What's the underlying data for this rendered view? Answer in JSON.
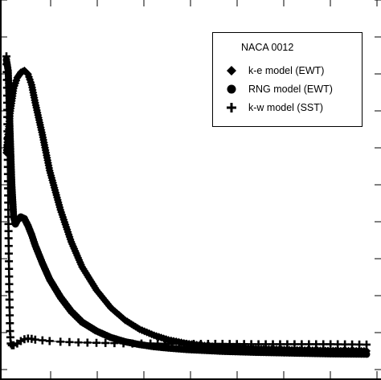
{
  "chart_data": {
    "type": "scatter",
    "legend": {
      "title": "NACA 0012",
      "placement": "top-right",
      "entries": [
        {
          "label": "k-e model (EWT)",
          "marker": "diamond"
        },
        {
          "label": "RNG model (EWT)",
          "marker": "circle"
        },
        {
          "label": "k-w model (SST)",
          "marker": "plus"
        }
      ]
    },
    "xlim": [
      0,
      1
    ],
    "ylim": [
      0,
      1
    ],
    "grid": false,
    "series": [
      {
        "name": "k-e model (EWT)",
        "marker": "diamond",
        "x": [
          0.0,
          0.01,
          0.02,
          0.03,
          0.04,
          0.05,
          0.06,
          0.07,
          0.08,
          0.1,
          0.12,
          0.15,
          0.18,
          0.21,
          0.25,
          0.29,
          0.33,
          0.37,
          0.41,
          0.45,
          0.5,
          0.55,
          0.6,
          0.7,
          0.8,
          0.9,
          1.0
        ],
        "y": [
          0.59,
          0.7,
          0.77,
          0.8,
          0.815,
          0.82,
          0.81,
          0.78,
          0.73,
          0.64,
          0.54,
          0.43,
          0.34,
          0.27,
          0.205,
          0.155,
          0.12,
          0.095,
          0.078,
          0.065,
          0.055,
          0.049,
          0.045,
          0.04,
          0.037,
          0.035,
          0.034
        ]
      },
      {
        "name": "RNG model (EWT)",
        "marker": "circle",
        "x": [
          0.0,
          0.005,
          0.01,
          0.015,
          0.02,
          0.025,
          0.03,
          0.04,
          0.05,
          0.06,
          0.07,
          0.08,
          0.1,
          0.12,
          0.15,
          0.18,
          0.21,
          0.25,
          0.29,
          0.33,
          0.37,
          0.41,
          0.45,
          0.5,
          0.6,
          0.7,
          0.8,
          0.9,
          1.0
        ],
        "y": [
          0.85,
          0.82,
          0.65,
          0.5,
          0.41,
          0.39,
          0.4,
          0.41,
          0.405,
          0.385,
          0.36,
          0.33,
          0.28,
          0.235,
          0.185,
          0.145,
          0.115,
          0.09,
          0.072,
          0.06,
          0.052,
          0.046,
          0.042,
          0.038,
          0.033,
          0.03,
          0.028,
          0.026,
          0.025
        ]
      },
      {
        "name": "k-w model (SST)",
        "marker": "plus",
        "x": [
          0.0,
          0.002,
          0.004,
          0.006,
          0.008,
          0.01,
          0.012,
          0.015,
          0.02,
          0.03,
          0.04,
          0.05,
          0.06,
          0.07,
          0.08,
          0.1,
          0.12,
          0.15,
          0.2,
          0.25,
          0.3,
          0.35,
          0.4,
          0.5,
          0.6,
          0.7,
          0.8,
          0.9,
          1.0
        ],
        "y": [
          0.86,
          0.75,
          0.55,
          0.35,
          0.2,
          0.09,
          0.055,
          0.05,
          0.05,
          0.055,
          0.062,
          0.067,
          0.069,
          0.068,
          0.066,
          0.064,
          0.062,
          0.06,
          0.058,
          0.057,
          0.056,
          0.055,
          0.055,
          0.054,
          0.054,
          0.053,
          0.053,
          0.053,
          0.052
        ]
      }
    ]
  }
}
